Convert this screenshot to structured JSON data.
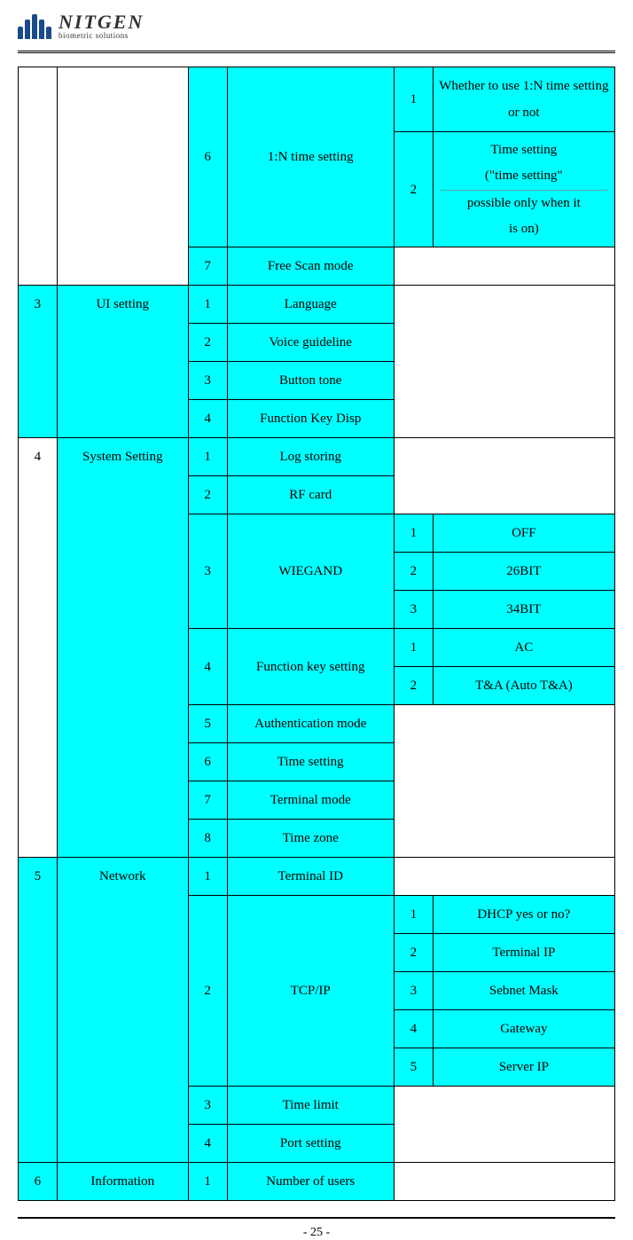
{
  "brand": {
    "name": "NITGEN",
    "tagline": "biometric solutions"
  },
  "page_number": "- 25 -",
  "colors": {
    "highlight": "#00ffff",
    "border": "#000000",
    "background": "#ffffff",
    "logo": "#1a4a8a"
  },
  "typography": {
    "body_font": "Times New Roman",
    "body_size_pt": 11,
    "brand_size_pt": 16
  },
  "table": {
    "column_widths_pct": [
      6.5,
      22,
      6.5,
      28,
      6.5,
      30.5
    ],
    "rows": [
      {
        "c3": "6",
        "c4": "1:N time setting",
        "c5": "1",
        "c6": "Whether to use 1:N time setting or not",
        "hl": [
          "c3",
          "c4",
          "c5",
          "c6"
        ],
        "c3_rowspan": 2,
        "c4_rowspan": 2,
        "c1_rowspan": 3,
        "c2_rowspan": 3,
        "c1": "",
        "c2": ""
      },
      {
        "c5": "2",
        "c6_lines": [
          "Time setting",
          "(\"time setting\"",
          "possible only when it",
          "is on)"
        ],
        "hl": [
          "c5",
          "c6"
        ]
      },
      {
        "c3": "7",
        "c4": "Free Scan mode",
        "c56_merged": true,
        "hl": [
          "c3",
          "c4"
        ]
      },
      {
        "c1": "3",
        "c2": "UI setting",
        "c3": "1",
        "c4": "Language",
        "c56_merged": true,
        "c56_rowspan": 4,
        "hl": [
          "c1",
          "c2",
          "c3",
          "c4"
        ],
        "c1_rowspan": 4,
        "c2_rowspan": 4
      },
      {
        "c3": "2",
        "c4": "Voice guideline",
        "hl": [
          "c3",
          "c4"
        ]
      },
      {
        "c3": "3",
        "c4": "Button tone",
        "hl": [
          "c3",
          "c4"
        ]
      },
      {
        "c3": "4",
        "c4": "Function Key Disp",
        "hl": [
          "c3",
          "c4"
        ]
      },
      {
        "c1": "4",
        "c2": "System Setting",
        "c3": "1",
        "c4": "Log storing",
        "c56_merged": true,
        "c56_rowspan": 2,
        "hl": [
          "c2",
          "c3",
          "c4"
        ],
        "c1_rowspan": 11,
        "c2_rowspan": 11
      },
      {
        "c3": "2",
        "c4": "RF card",
        "hl": [
          "c3",
          "c4"
        ]
      },
      {
        "c3": "3",
        "c4": "WIEGAND",
        "c5": "1",
        "c6": "OFF",
        "hl": [
          "c3",
          "c4",
          "c5",
          "c6"
        ],
        "c3_rowspan": 3,
        "c4_rowspan": 3
      },
      {
        "c5": "2",
        "c6": "26BIT",
        "hl": [
          "c5",
          "c6"
        ]
      },
      {
        "c5": "3",
        "c6": "34BIT",
        "hl": [
          "c5",
          "c6"
        ]
      },
      {
        "c3": "4",
        "c4": "Function key setting",
        "c5": "1",
        "c6": "AC",
        "hl": [
          "c3",
          "c4",
          "c5",
          "c6"
        ],
        "c3_rowspan": 2,
        "c4_rowspan": 2
      },
      {
        "c5": "2",
        "c6": "T&A (Auto T&A)",
        "hl": [
          "c5",
          "c6"
        ]
      },
      {
        "c3": "5",
        "c4": "Authentication mode",
        "c56_merged": true,
        "c56_rowspan": 4,
        "hl": [
          "c3",
          "c4"
        ]
      },
      {
        "c3": "6",
        "c4": "Time setting",
        "hl": [
          "c3",
          "c4"
        ]
      },
      {
        "c3": "7",
        "c4": "Terminal mode",
        "hl": [
          "c3",
          "c4"
        ]
      },
      {
        "c3": "8",
        "c4": "Time zone",
        "hl": [
          "c3",
          "c4"
        ]
      },
      {
        "c1": "5",
        "c2": "Network",
        "c3": "1",
        "c4": "Terminal ID",
        "c56_merged": true,
        "hl": [
          "c1",
          "c2",
          "c3",
          "c4"
        ],
        "c1_rowspan": 8,
        "c2_rowspan": 8
      },
      {
        "c3": "2",
        "c4": "TCP/IP",
        "c5": "1",
        "c6": "DHCP yes or no?",
        "hl": [
          "c3",
          "c4",
          "c5",
          "c6"
        ],
        "c3_rowspan": 5,
        "c4_rowspan": 5
      },
      {
        "c5": "2",
        "c6": "Terminal IP",
        "hl": [
          "c5",
          "c6"
        ]
      },
      {
        "c5": "3",
        "c6": "Sebnet Mask",
        "hl": [
          "c5",
          "c6"
        ]
      },
      {
        "c5": "4",
        "c6": "Gateway",
        "hl": [
          "c5",
          "c6"
        ]
      },
      {
        "c5": "5",
        "c6": "Server IP",
        "hl": [
          "c5",
          "c6"
        ]
      },
      {
        "c3": "3",
        "c4": "Time limit",
        "c4_align": "left-ish",
        "c56_merged": true,
        "c56_rowspan": 2,
        "hl": [
          "c3",
          "c4"
        ]
      },
      {
        "c3": "4",
        "c4": "Port setting",
        "hl": [
          "c3",
          "c4"
        ]
      },
      {
        "c1": "6",
        "c2": "Information",
        "c3": "1",
        "c4": "Number of users",
        "c56_merged": true,
        "hl": [
          "c1",
          "c2",
          "c3",
          "c4"
        ]
      }
    ]
  }
}
